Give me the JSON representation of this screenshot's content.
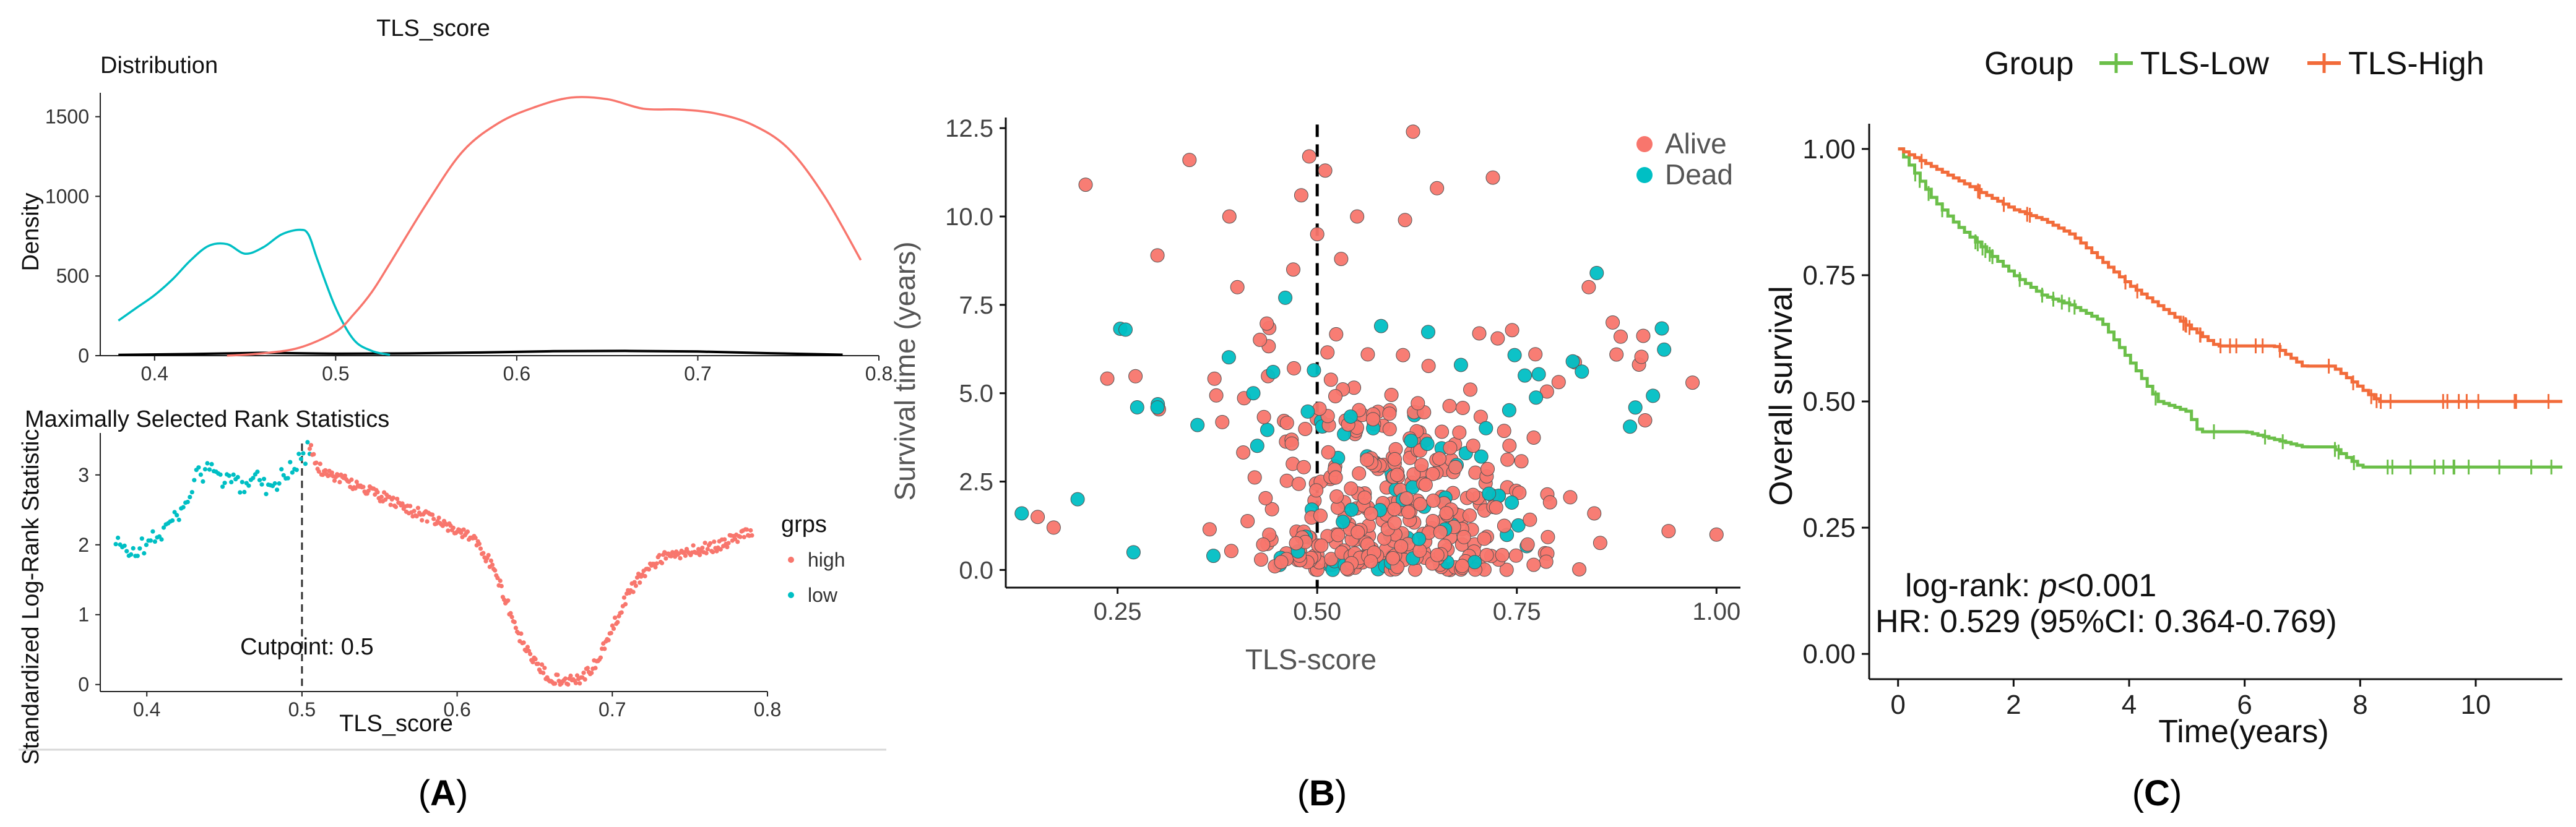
{
  "panel_labels": {
    "a": "A",
    "b": "B",
    "c": "C"
  },
  "chart_data": [
    {
      "id": "A-top",
      "type": "area",
      "title": "TLS_score",
      "subtitle": "Distribution",
      "xlabel": "",
      "ylabel": "Density",
      "xlim": [
        0.37,
        0.8
      ],
      "ylim": [
        0,
        1650
      ],
      "x_ticks": [
        0.4,
        0.5,
        0.6,
        0.7,
        0.8
      ],
      "y_ticks": [
        0,
        500,
        1000,
        1500
      ],
      "colors": {
        "high": "#F8766D",
        "low": "#00BFC4",
        "hist": "#000000"
      },
      "series": [
        {
          "key": "low",
          "x": [
            0.38,
            0.39,
            0.4,
            0.41,
            0.42,
            0.43,
            0.44,
            0.45,
            0.46,
            0.47,
            0.48,
            0.485,
            0.49,
            0.5,
            0.51,
            0.52,
            0.53
          ],
          "values": [
            220,
            300,
            380,
            480,
            600,
            690,
            700,
            640,
            680,
            760,
            790,
            760,
            600,
            300,
            100,
            30,
            5
          ]
        },
        {
          "key": "high",
          "x": [
            0.44,
            0.46,
            0.48,
            0.5,
            0.51,
            0.52,
            0.53,
            0.55,
            0.57,
            0.59,
            0.61,
            0.63,
            0.65,
            0.67,
            0.69,
            0.71,
            0.73,
            0.75,
            0.77,
            0.79
          ],
          "values": [
            0,
            15,
            50,
            150,
            260,
            400,
            580,
            950,
            1280,
            1460,
            1560,
            1620,
            1610,
            1550,
            1545,
            1520,
            1450,
            1300,
            1000,
            600
          ]
        },
        {
          "key": "hist",
          "x": [
            0.38,
            0.42,
            0.46,
            0.5,
            0.54,
            0.58,
            0.62,
            0.66,
            0.7,
            0.74,
            0.78
          ],
          "values": [
            5,
            10,
            18,
            12,
            14,
            20,
            28,
            30,
            26,
            15,
            6
          ]
        }
      ]
    },
    {
      "id": "A-bottom",
      "type": "scatter",
      "title": "Maximally Selected Rank Statistics",
      "xlabel": "TLS_score",
      "ylabel": "Standardized Log-Rank Statistic",
      "xlim": [
        0.37,
        0.8
      ],
      "ylim": [
        -0.1,
        3.6
      ],
      "x_ticks": [
        0.4,
        0.5,
        0.6,
        0.7,
        0.8
      ],
      "y_ticks": [
        0,
        1,
        2,
        3
      ],
      "cutpoint": 0.5,
      "cutpoint_label": "Cutpoint: 0.5",
      "legend": {
        "title": "grps",
        "position": "right",
        "entries": [
          {
            "key": "high",
            "label": "high",
            "color": "#F8766D"
          },
          {
            "key": "low",
            "label": "low",
            "color": "#00BFC4"
          }
        ]
      },
      "low_curve": {
        "x": [
          0.38,
          0.39,
          0.4,
          0.41,
          0.42,
          0.43,
          0.44,
          0.45,
          0.46,
          0.47,
          0.48,
          0.49,
          0.5,
          0.505
        ],
        "values": [
          2.0,
          1.9,
          2.0,
          2.2,
          2.4,
          2.9,
          3.1,
          2.9,
          2.85,
          3.0,
          2.8,
          3.05,
          3.2,
          3.4
        ]
      },
      "high_curve": {
        "x": [
          0.505,
          0.51,
          0.52,
          0.53,
          0.55,
          0.57,
          0.59,
          0.61,
          0.62,
          0.63,
          0.64,
          0.65,
          0.66,
          0.67,
          0.68,
          0.69,
          0.7,
          0.71,
          0.72,
          0.73,
          0.75,
          0.77,
          0.79
        ],
        "values": [
          3.4,
          3.1,
          3.0,
          2.9,
          2.7,
          2.5,
          2.3,
          2.1,
          1.8,
          1.3,
          0.7,
          0.3,
          0.1,
          0.05,
          0.1,
          0.3,
          0.8,
          1.3,
          1.6,
          1.8,
          1.9,
          2.0,
          2.2
        ]
      }
    },
    {
      "id": "B",
      "type": "scatter",
      "title": "",
      "xlabel": "TLS-score",
      "ylabel": "Survival time (years)",
      "xlim": [
        0.11,
        1.03
      ],
      "ylim": [
        -0.5,
        12.8
      ],
      "x_ticks": [
        0.25,
        0.5,
        0.75,
        1.0
      ],
      "x_tick_labels": [
        "0.25",
        "0.50",
        "0.75",
        "1.00"
      ],
      "y_ticks": [
        0.0,
        2.5,
        5.0,
        7.5,
        10.0,
        12.5
      ],
      "y_tick_labels": [
        "0.0",
        "2.5",
        "5.0",
        "7.5",
        "10.0",
        "12.5"
      ],
      "threshold": 0.5,
      "legend": {
        "position": "top-right",
        "entries": [
          {
            "key": "alive",
            "label": "Alive",
            "color": "#F8766D"
          },
          {
            "key": "dead",
            "label": "Dead",
            "color": "#00BFC4"
          }
        ]
      },
      "highlighted_points": {
        "alive": [
          [
            0.21,
            10.9
          ],
          [
            0.34,
            11.6
          ],
          [
            0.49,
            11.7
          ],
          [
            0.51,
            11.3
          ],
          [
            0.62,
            12.4
          ],
          [
            0.72,
            11.1
          ],
          [
            0.65,
            10.8
          ],
          [
            0.39,
            10.0
          ],
          [
            0.48,
            10.6
          ],
          [
            0.55,
            10.0
          ],
          [
            0.61,
            9.9
          ],
          [
            0.3,
            8.9
          ],
          [
            0.4,
            8.0
          ],
          [
            0.5,
            9.5
          ],
          [
            0.47,
            8.5
          ],
          [
            0.53,
            8.8
          ],
          [
            0.84,
            8.0
          ],
          [
            0.88,
            6.6
          ],
          [
            0.87,
            7.0
          ],
          [
            0.97,
            5.3
          ],
          [
            1.0,
            1.0
          ],
          [
            0.94,
            1.1
          ],
          [
            0.15,
            1.5
          ],
          [
            0.17,
            1.2
          ]
        ],
        "dead": [
          [
            0.13,
            1.6
          ],
          [
            0.2,
            2.0
          ],
          [
            0.26,
            6.8
          ],
          [
            0.46,
            7.7
          ],
          [
            0.58,
            6.9
          ],
          [
            0.85,
            8.4
          ],
          [
            0.82,
            5.9
          ],
          [
            0.76,
            5.5
          ],
          [
            0.68,
            5.8
          ],
          [
            0.3,
            4.6
          ],
          [
            0.35,
            4.1
          ],
          [
            0.42,
            5.0
          ],
          [
            0.27,
            0.5
          ],
          [
            0.37,
            0.4
          ]
        ]
      }
    },
    {
      "id": "C",
      "type": "line",
      "title": "",
      "xlabel": "Time(years)",
      "ylabel": "Overall survival",
      "xlim": [
        -0.5,
        11.5
      ],
      "ylim": [
        -0.05,
        1.05
      ],
      "x_ticks": [
        0,
        2,
        4,
        6,
        8,
        10
      ],
      "y_ticks": [
        0.0,
        0.25,
        0.5,
        0.75,
        1.0
      ],
      "y_tick_labels": [
        "0.00",
        "0.25",
        "0.50",
        "0.75",
        "1.00"
      ],
      "legend": {
        "title": "Group",
        "position": "top",
        "entries": [
          {
            "key": "low",
            "label": "TLS-Low",
            "color": "#6BBF49"
          },
          {
            "key": "high",
            "label": "TLS-High",
            "color": "#F26B3A"
          }
        ]
      },
      "annotations": {
        "logrank_prefix": "log-rank: ",
        "logrank_italic": "p",
        "logrank_suffix": "<0.001",
        "hr": "HR: 0.529 (95%CI: 0.364-0.769)"
      },
      "series": [
        {
          "name": "TLS-Low",
          "x": [
            0,
            0.3,
            0.6,
            1.0,
            1.5,
            2.0,
            2.5,
            3.0,
            3.5,
            4.0,
            4.5,
            5.0,
            5.2,
            6.0,
            7.0,
            7.5,
            8.0,
            8.5,
            10.0,
            11.5
          ],
          "values": [
            1.0,
            0.95,
            0.9,
            0.85,
            0.8,
            0.75,
            0.71,
            0.69,
            0.66,
            0.58,
            0.5,
            0.48,
            0.44,
            0.44,
            0.41,
            0.41,
            0.37,
            0.37,
            0.37,
            0.37
          ]
        },
        {
          "name": "TLS-High",
          "x": [
            0,
            0.5,
            1.0,
            1.5,
            2.0,
            2.5,
            3.0,
            3.5,
            4.0,
            4.5,
            5.0,
            5.5,
            6.0,
            6.5,
            7.0,
            7.5,
            8.3,
            9.0,
            10.0,
            11.5
          ],
          "values": [
            1.0,
            0.97,
            0.94,
            0.91,
            0.88,
            0.86,
            0.83,
            0.78,
            0.73,
            0.69,
            0.65,
            0.61,
            0.61,
            0.61,
            0.57,
            0.57,
            0.5,
            0.5,
            0.5,
            0.5
          ]
        }
      ]
    }
  ]
}
